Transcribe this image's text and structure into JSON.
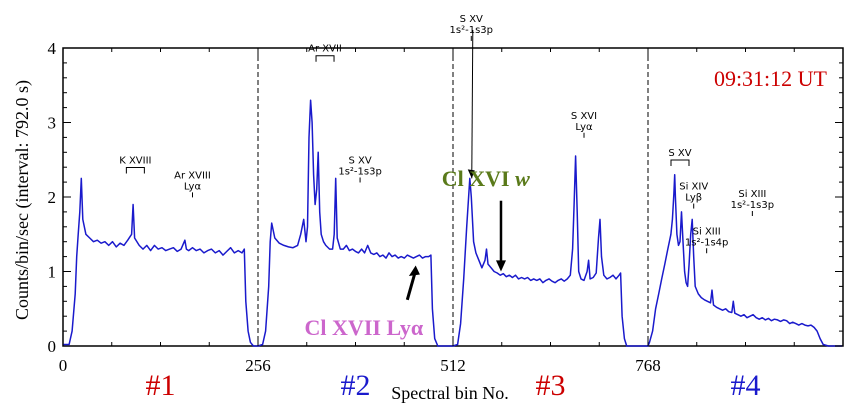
{
  "chart_data": {
    "type": "line",
    "xlabel": "Spectral bin No.",
    "ylabel": "Counts/bin/sec (interval: 792.0 s)",
    "xlim": [
      0,
      1024
    ],
    "ylim": [
      0,
      4
    ],
    "x_ticks": [
      "0",
      "256",
      "512",
      "768"
    ],
    "y_ticks": [
      "0",
      "1",
      "2",
      "3",
      "4"
    ],
    "time": "09:31:12 UT",
    "segment_boundaries": [
      256,
      512,
      768
    ],
    "segments": [
      {
        "label": "#1",
        "color": "#cc0000"
      },
      {
        "label": "#2",
        "color": "#1a1acc"
      },
      {
        "label": "#3",
        "color": "#cc0000"
      },
      {
        "label": "#4",
        "color": "#1a1acc"
      }
    ],
    "line_labels": [
      {
        "id": "kxviii",
        "text": "K XVIII",
        "x": 95,
        "y": 2.45,
        "bracket": true
      },
      {
        "id": "arxviii",
        "text": "Ar XVIII",
        "sub": "Lyα",
        "x": 170,
        "y": 2.25
      },
      {
        "id": "arxvii",
        "text": "Ar XVII",
        "x": 344,
        "y": 3.95,
        "bracket": true
      },
      {
        "id": "sxv2",
        "text": "S XV",
        "sub": "1s²-1s3p",
        "x": 390,
        "y": 2.45
      },
      {
        "id": "sxv3",
        "text": "S XV",
        "sub": "1s²-1s3p",
        "x": 536,
        "y": 4.35
      },
      {
        "id": "sxvi",
        "text": "S XVI",
        "sub": "Lyα",
        "x": 684,
        "y": 3.05
      },
      {
        "id": "sxv4",
        "text": "S XV",
        "x": 810,
        "y": 2.55,
        "bracket": true
      },
      {
        "id": "sixiv",
        "text": "Si XIV",
        "sub": "Lyβ",
        "x": 828,
        "y": 2.1
      },
      {
        "id": "sixiii",
        "text": "Si XIII",
        "sub": "1s²-1s3p",
        "x": 905,
        "y": 2.0
      },
      {
        "id": "sxiii",
        "text": "Si XIII",
        "sub": "1s²-1s4p",
        "x": 845,
        "y": 1.5
      }
    ],
    "annotations": [
      {
        "id": "clxvi",
        "text": "Cl XVI",
        "italic": "w",
        "color": "#5a7a1a",
        "x": 555,
        "y": 2.15
      },
      {
        "id": "clxvii",
        "text": "Cl XVII Lyα",
        "color": "#cc66cc",
        "x": 395,
        "y": 0.15
      }
    ],
    "series": [
      {
        "color": "#1a1acc",
        "points": [
          [
            0,
            0.02
          ],
          [
            8,
            0.02
          ],
          [
            12,
            0.2
          ],
          [
            16,
            0.7
          ],
          [
            18,
            1.2
          ],
          [
            20,
            1.5
          ],
          [
            22,
            1.8
          ],
          [
            24,
            2.25
          ],
          [
            26,
            1.7
          ],
          [
            30,
            1.5
          ],
          [
            35,
            1.45
          ],
          [
            40,
            1.4
          ],
          [
            45,
            1.42
          ],
          [
            50,
            1.38
          ],
          [
            55,
            1.4
          ],
          [
            60,
            1.35
          ],
          [
            65,
            1.4
          ],
          [
            70,
            1.33
          ],
          [
            75,
            1.38
          ],
          [
            80,
            1.35
          ],
          [
            85,
            1.42
          ],
          [
            90,
            1.5
          ],
          [
            92,
            1.9
          ],
          [
            94,
            1.45
          ],
          [
            100,
            1.35
          ],
          [
            105,
            1.3
          ],
          [
            110,
            1.35
          ],
          [
            115,
            1.28
          ],
          [
            120,
            1.35
          ],
          [
            125,
            1.3
          ],
          [
            130,
            1.32
          ],
          [
            135,
            1.28
          ],
          [
            140,
            1.3
          ],
          [
            145,
            1.32
          ],
          [
            150,
            1.27
          ],
          [
            155,
            1.3
          ],
          [
            160,
            1.42
          ],
          [
            162,
            1.3
          ],
          [
            165,
            1.28
          ],
          [
            170,
            1.32
          ],
          [
            175,
            1.28
          ],
          [
            180,
            1.3
          ],
          [
            185,
            1.25
          ],
          [
            190,
            1.28
          ],
          [
            195,
            1.3
          ],
          [
            200,
            1.25
          ],
          [
            205,
            1.28
          ],
          [
            210,
            1.22
          ],
          [
            215,
            1.27
          ],
          [
            220,
            1.32
          ],
          [
            225,
            1.25
          ],
          [
            230,
            1.28
          ],
          [
            235,
            1.25
          ],
          [
            238,
            1.3
          ],
          [
            240,
            0.6
          ],
          [
            243,
            0.2
          ],
          [
            246,
            0.05
          ],
          [
            250,
            0.0
          ],
          [
            255,
            0.0
          ],
          [
            256,
            0.0
          ],
          [
            262,
            0.02
          ],
          [
            266,
            0.2
          ],
          [
            270,
            0.8
          ],
          [
            272,
            1.4
          ],
          [
            274,
            1.65
          ],
          [
            278,
            1.45
          ],
          [
            284,
            1.38
          ],
          [
            290,
            1.35
          ],
          [
            296,
            1.33
          ],
          [
            302,
            1.32
          ],
          [
            308,
            1.35
          ],
          [
            312,
            1.5
          ],
          [
            316,
            1.7
          ],
          [
            319,
            1.4
          ],
          [
            321,
            1.6
          ],
          [
            323,
            2.8
          ],
          [
            325,
            3.3
          ],
          [
            327,
            3.0
          ],
          [
            329,
            2.3
          ],
          [
            331,
            1.9
          ],
          [
            333,
            2.1
          ],
          [
            335,
            2.6
          ],
          [
            337,
            1.8
          ],
          [
            339,
            1.5
          ],
          [
            342,
            1.4
          ],
          [
            345,
            1.35
          ],
          [
            350,
            1.3
          ],
          [
            354,
            1.3
          ],
          [
            356,
            1.5
          ],
          [
            358,
            2.25
          ],
          [
            360,
            1.45
          ],
          [
            364,
            1.3
          ],
          [
            368,
            1.3
          ],
          [
            372,
            1.35
          ],
          [
            376,
            1.28
          ],
          [
            380,
            1.3
          ],
          [
            384,
            1.27
          ],
          [
            388,
            1.25
          ],
          [
            392,
            1.3
          ],
          [
            396,
            1.25
          ],
          [
            400,
            1.35
          ],
          [
            404,
            1.25
          ],
          [
            408,
            1.23
          ],
          [
            412,
            1.25
          ],
          [
            416,
            1.2
          ],
          [
            420,
            1.22
          ],
          [
            424,
            1.18
          ],
          [
            428,
            1.25
          ],
          [
            432,
            1.2
          ],
          [
            436,
            1.22
          ],
          [
            440,
            1.18
          ],
          [
            444,
            1.2
          ],
          [
            448,
            1.18
          ],
          [
            452,
            1.22
          ],
          [
            456,
            1.2
          ],
          [
            460,
            1.18
          ],
          [
            464,
            1.2
          ],
          [
            468,
            1.22
          ],
          [
            472,
            1.18
          ],
          [
            476,
            1.2
          ],
          [
            480,
            1.2
          ],
          [
            483,
            1.22
          ],
          [
            485,
            0.5
          ],
          [
            488,
            0.1
          ],
          [
            492,
            0.0
          ],
          [
            500,
            0.0
          ],
          [
            511,
            0.0
          ],
          [
            512,
            0.0
          ],
          [
            518,
            0.02
          ],
          [
            522,
            0.3
          ],
          [
            526,
            0.9
          ],
          [
            530,
            1.6
          ],
          [
            534,
            2.25
          ],
          [
            536,
            2.0
          ],
          [
            539,
            1.4
          ],
          [
            542,
            1.25
          ],
          [
            546,
            1.15
          ],
          [
            550,
            1.05
          ],
          [
            554,
            1.15
          ],
          [
            556,
            1.3
          ],
          [
            558,
            1.1
          ],
          [
            562,
            1.05
          ],
          [
            566,
            1.0
          ],
          [
            570,
            0.98
          ],
          [
            574,
            0.95
          ],
          [
            578,
            0.97
          ],
          [
            582,
            0.93
          ],
          [
            586,
            0.95
          ],
          [
            590,
            0.92
          ],
          [
            594,
            0.95
          ],
          [
            598,
            0.9
          ],
          [
            602,
            0.92
          ],
          [
            606,
            0.9
          ],
          [
            610,
            0.92
          ],
          [
            614,
            0.88
          ],
          [
            618,
            0.9
          ],
          [
            622,
            0.88
          ],
          [
            626,
            0.9
          ],
          [
            630,
            0.85
          ],
          [
            634,
            0.88
          ],
          [
            638,
            0.9
          ],
          [
            642,
            0.87
          ],
          [
            646,
            0.85
          ],
          [
            650,
            0.88
          ],
          [
            654,
            0.9
          ],
          [
            658,
            0.87
          ],
          [
            662,
            0.9
          ],
          [
            666,
            0.95
          ],
          [
            669,
            1.3
          ],
          [
            671,
            1.9
          ],
          [
            673,
            2.55
          ],
          [
            675,
            1.8
          ],
          [
            677,
            1.0
          ],
          [
            680,
            0.9
          ],
          [
            684,
            0.88
          ],
          [
            688,
            1.0
          ],
          [
            690,
            1.15
          ],
          [
            692,
            0.9
          ],
          [
            696,
            0.92
          ],
          [
            700,
            0.98
          ],
          [
            703,
            1.45
          ],
          [
            705,
            1.7
          ],
          [
            707,
            1.2
          ],
          [
            710,
            0.95
          ],
          [
            714,
            0.9
          ],
          [
            718,
            0.92
          ],
          [
            722,
            0.95
          ],
          [
            726,
            0.9
          ],
          [
            730,
            0.95
          ],
          [
            732,
            0.98
          ],
          [
            734,
            0.4
          ],
          [
            737,
            0.1
          ],
          [
            740,
            0.0
          ],
          [
            750,
            0.0
          ],
          [
            767,
            0.0
          ],
          [
            768,
            0.0
          ],
          [
            770,
            0.05
          ],
          [
            774,
            0.2
          ],
          [
            778,
            0.5
          ],
          [
            782,
            0.7
          ],
          [
            786,
            0.9
          ],
          [
            790,
            1.1
          ],
          [
            794,
            1.3
          ],
          [
            798,
            1.5
          ],
          [
            800,
            1.7
          ],
          [
            802,
            2.05
          ],
          [
            803,
            2.3
          ],
          [
            804,
            2.0
          ],
          [
            806,
            1.5
          ],
          [
            808,
            1.35
          ],
          [
            810,
            1.4
          ],
          [
            812,
            1.8
          ],
          [
            814,
            1.4
          ],
          [
            816,
            1.0
          ],
          [
            818,
            0.85
          ],
          [
            820,
            0.8
          ],
          [
            822,
            1.1
          ],
          [
            824,
            1.5
          ],
          [
            826,
            1.7
          ],
          [
            828,
            1.2
          ],
          [
            830,
            0.8
          ],
          [
            834,
            0.7
          ],
          [
            838,
            0.65
          ],
          [
            842,
            0.62
          ],
          [
            846,
            0.6
          ],
          [
            850,
            0.58
          ],
          [
            852,
            0.75
          ],
          [
            854,
            0.55
          ],
          [
            858,
            0.52
          ],
          [
            862,
            0.5
          ],
          [
            866,
            0.48
          ],
          [
            870,
            0.5
          ],
          [
            874,
            0.46
          ],
          [
            878,
            0.45
          ],
          [
            880,
            0.6
          ],
          [
            882,
            0.44
          ],
          [
            886,
            0.42
          ],
          [
            890,
            0.4
          ],
          [
            894,
            0.42
          ],
          [
            898,
            0.38
          ],
          [
            902,
            0.4
          ],
          [
            906,
            0.42
          ],
          [
            910,
            0.38
          ],
          [
            914,
            0.36
          ],
          [
            918,
            0.38
          ],
          [
            922,
            0.35
          ],
          [
            926,
            0.37
          ],
          [
            930,
            0.34
          ],
          [
            934,
            0.36
          ],
          [
            938,
            0.35
          ],
          [
            942,
            0.33
          ],
          [
            946,
            0.35
          ],
          [
            950,
            0.34
          ],
          [
            954,
            0.3
          ],
          [
            958,
            0.32
          ],
          [
            962,
            0.3
          ],
          [
            966,
            0.28
          ],
          [
            970,
            0.3
          ],
          [
            974,
            0.28
          ],
          [
            978,
            0.27
          ],
          [
            982,
            0.28
          ],
          [
            986,
            0.25
          ],
          [
            990,
            0.2
          ],
          [
            994,
            0.1
          ],
          [
            998,
            0.02
          ],
          [
            1005,
            0.0
          ],
          [
            1023,
            0.0
          ]
        ]
      }
    ]
  }
}
